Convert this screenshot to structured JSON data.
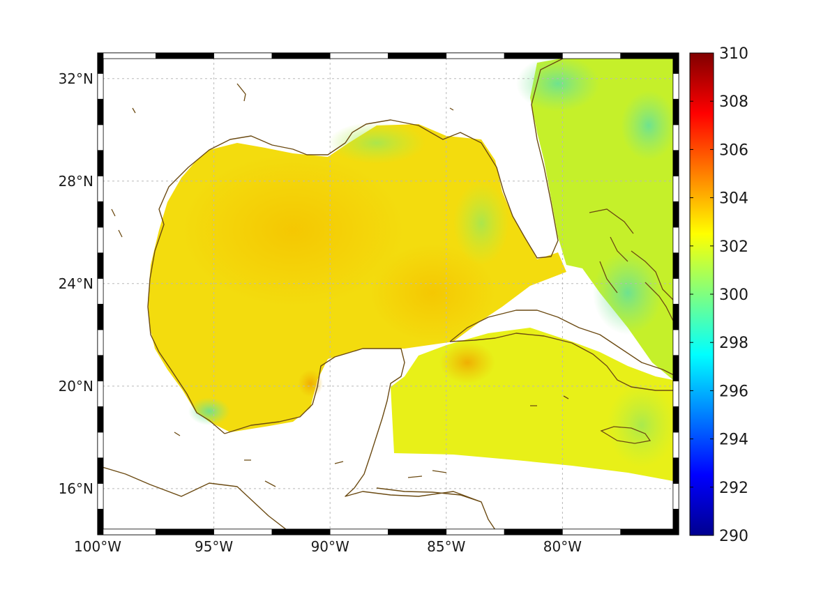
{
  "map": {
    "projection": "equidistant-cylindrical",
    "lon_range": [
      -100,
      -75
    ],
    "lat_range": [
      14.2,
      33
    ],
    "background": "#ffffff",
    "coastline_color": "#6b4a12",
    "frame_style": "black-white-checker",
    "x_ticks": [
      {
        "value": -100,
        "label": "100°W"
      },
      {
        "value": -95,
        "label": "95°W"
      },
      {
        "value": -90,
        "label": "90°W"
      },
      {
        "value": -85,
        "label": "85°W"
      },
      {
        "value": -80,
        "label": "80°W"
      }
    ],
    "y_ticks": [
      {
        "value": 32,
        "label": "32°N"
      },
      {
        "value": 28,
        "label": "28°N"
      },
      {
        "value": 24,
        "label": "24°N"
      },
      {
        "value": 20,
        "label": "20°N"
      },
      {
        "value": 16,
        "label": "16°N"
      }
    ],
    "grid": true
  },
  "colorbar": {
    "colormap": "jet",
    "min": 290,
    "max": 310,
    "ticks": [
      {
        "value": 310,
        "label": "310"
      },
      {
        "value": 308,
        "label": "308"
      },
      {
        "value": 306,
        "label": "306"
      },
      {
        "value": 304,
        "label": "304"
      },
      {
        "value": 302,
        "label": "302"
      },
      {
        "value": 300,
        "label": "300"
      },
      {
        "value": 298,
        "label": "298"
      },
      {
        "value": 296,
        "label": "296"
      },
      {
        "value": 294,
        "label": "294"
      },
      {
        "value": 292,
        "label": "292"
      },
      {
        "value": 290,
        "label": "290"
      }
    ]
  },
  "field": {
    "typical_value_west_gulf": 302.8,
    "typical_value_east_gulf": 302.0,
    "typical_value_atlantic": 300.8,
    "warm_spot_value": 303.6
  }
}
